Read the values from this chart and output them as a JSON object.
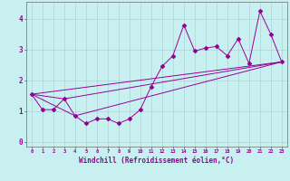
{
  "xlabel": "Windchill (Refroidissement éolien,°C)",
  "bg_color": "#c8f0f0",
  "grid_color": "#a0d8d8",
  "line_color": "#990099",
  "xlim": [
    -0.5,
    23.5
  ],
  "ylim": [
    -0.15,
    4.55
  ],
  "xticks": [
    0,
    1,
    2,
    3,
    4,
    5,
    6,
    7,
    8,
    9,
    10,
    11,
    12,
    13,
    14,
    15,
    16,
    17,
    18,
    19,
    20,
    21,
    22,
    23
  ],
  "yticks": [
    0,
    1,
    2,
    3,
    4
  ],
  "scatter_x": [
    0,
    1,
    2,
    3,
    4,
    5,
    6,
    7,
    8,
    9,
    10,
    11,
    12,
    13,
    14,
    15,
    16,
    17,
    18,
    19,
    20,
    21,
    22,
    23
  ],
  "scatter_y": [
    1.55,
    1.05,
    1.05,
    1.4,
    0.85,
    0.6,
    0.75,
    0.75,
    0.6,
    0.75,
    1.05,
    1.8,
    2.45,
    2.8,
    3.8,
    2.95,
    3.05,
    3.1,
    2.8,
    3.35,
    2.55,
    4.25,
    3.5,
    2.6
  ],
  "trend1_x": [
    0,
    23
  ],
  "trend1_y": [
    1.55,
    2.6
  ],
  "trend2_x": [
    0,
    4,
    23
  ],
  "trend2_y": [
    1.55,
    0.85,
    2.6
  ],
  "trend3_x": [
    0,
    3,
    23
  ],
  "trend3_y": [
    1.55,
    1.4,
    2.6
  ],
  "figsize": [
    3.2,
    2.0
  ],
  "dpi": 100
}
